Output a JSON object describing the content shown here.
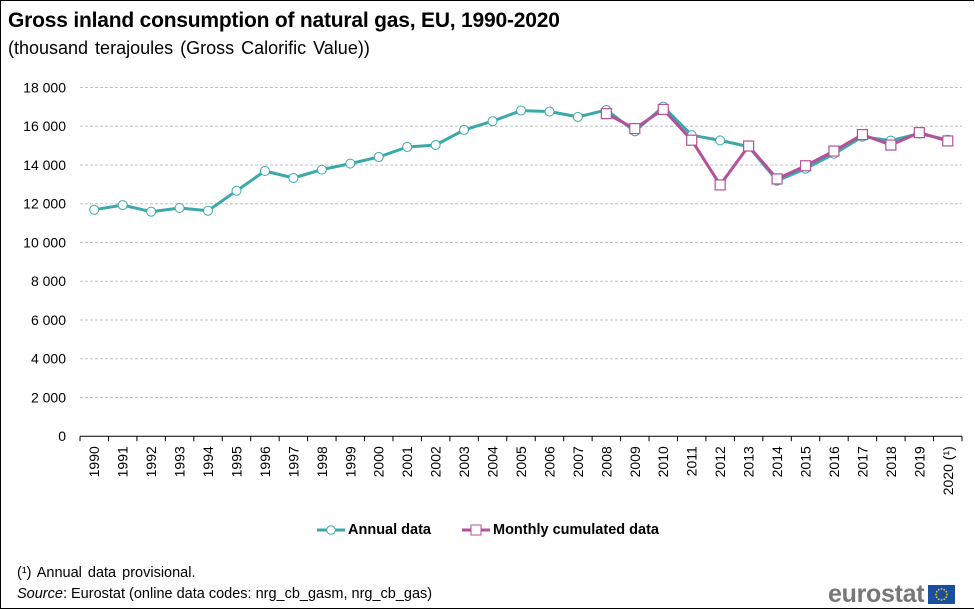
{
  "header": {
    "title": "Gross inland consumption of natural gas, EU, 1990-2020",
    "subtitle": "(thousand  terajoules (Gross Calorific Value))"
  },
  "chart_data": {
    "type": "line",
    "title": "Gross inland consumption of natural gas, EU, 1990-2020",
    "subtitle": "(thousand terajoules (Gross Calorific Value))",
    "xlabel": "",
    "ylabel": "",
    "ylim": [
      0,
      18000
    ],
    "yticks": [
      0,
      2000,
      4000,
      6000,
      8000,
      10000,
      12000,
      14000,
      16000,
      18000
    ],
    "ytick_labels": [
      "0",
      "2 000",
      "4 000",
      "6 000",
      "8 000",
      "10 000",
      "12 000",
      "14 000",
      "16 000",
      "18 000"
    ],
    "grid": "horizontal dashed",
    "legend_position": "bottom-center",
    "categories": [
      "1990",
      "1991",
      "1992",
      "1993",
      "1994",
      "1995",
      "1996",
      "1997",
      "1998",
      "1999",
      "2000",
      "2001",
      "2002",
      "2003",
      "2004",
      "2005",
      "2006",
      "2007",
      "2008",
      "2009",
      "2010",
      "2011",
      "2012",
      "2013",
      "2014",
      "2015",
      "2016",
      "2017",
      "2018",
      "2019",
      "2020 (¹)"
    ],
    "series": [
      {
        "name": "Annual data",
        "color": "#3ba9a9",
        "marker": "circle",
        "values": [
          11690,
          11930,
          11590,
          11780,
          11640,
          12670,
          13690,
          13330,
          13760,
          14070,
          14410,
          14930,
          15030,
          15810,
          16260,
          16810,
          16760,
          16480,
          16840,
          15740,
          17010,
          15540,
          15270,
          14950,
          13190,
          13810,
          14580,
          15460,
          15260,
          15620,
          15300
        ]
      },
      {
        "name": "Monthly cumulated data",
        "color": "#b5509a",
        "marker": "square",
        "values": [
          null,
          null,
          null,
          null,
          null,
          null,
          null,
          null,
          null,
          null,
          null,
          null,
          null,
          null,
          null,
          null,
          null,
          null,
          16650,
          15880,
          16870,
          15280,
          12970,
          14980,
          13280,
          13960,
          14720,
          15570,
          15030,
          15670,
          15240
        ]
      }
    ]
  },
  "legend": {
    "annual_label": "Annual data",
    "monthly_label": "Monthly cumulated data"
  },
  "footer": {
    "footnote": "(¹) Annual  data provisional.",
    "source_label": "Source",
    "source_text": ": Eurostat (online data codes: nrg_cb_gasm, nrg_cb_gas)",
    "logo_text": "eurostat",
    "logo_icon": "eu-flag-icon"
  }
}
